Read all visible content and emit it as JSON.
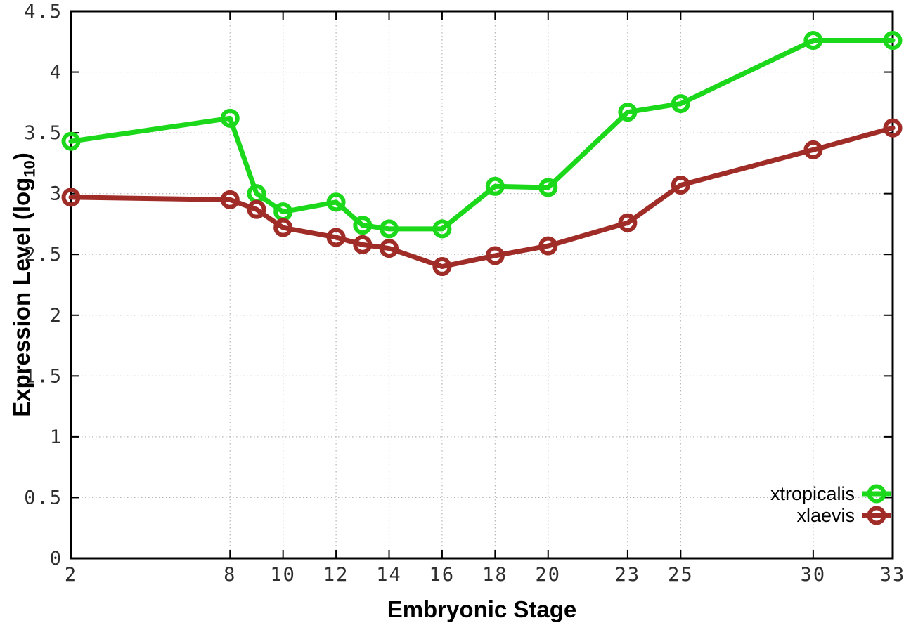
{
  "chart_data": {
    "type": "line",
    "title": "",
    "xlabel": "Embryonic Stage",
    "ylabel": "Expression Level (log10)",
    "ylabel_parts": {
      "prefix": "Expression Level (log",
      "sub": "10",
      "suffix": ")"
    },
    "x": [
      2,
      8,
      9,
      10,
      12,
      13,
      14,
      16,
      18,
      20,
      23,
      25,
      30,
      33
    ],
    "series": [
      {
        "name": "xtropicalis",
        "color": "#1bd81b",
        "values": [
          3.43,
          3.62,
          3.0,
          2.85,
          2.93,
          2.74,
          2.71,
          2.71,
          3.06,
          3.05,
          3.67,
          3.74,
          4.26,
          4.26
        ]
      },
      {
        "name": "xlaevis",
        "color": "#a02c28",
        "values": [
          2.97,
          2.95,
          2.87,
          2.72,
          2.64,
          2.58,
          2.55,
          2.4,
          2.49,
          2.57,
          2.76,
          3.07,
          3.36,
          3.54
        ]
      }
    ],
    "x_ticks": [
      2,
      8,
      10,
      12,
      14,
      16,
      18,
      20,
      23,
      25,
      30,
      33
    ],
    "x_tick_labels": [
      "2",
      "8",
      "10",
      "12",
      "14",
      "16",
      "18",
      "20",
      "23",
      "25",
      "30",
      "33"
    ],
    "y_ticks": [
      0,
      0.5,
      1,
      1.5,
      2,
      2.5,
      3,
      3.5,
      4,
      4.5
    ],
    "y_tick_labels": [
      "0",
      "0.5",
      "1",
      "1.5",
      "2",
      "2.5",
      "3",
      "3.5",
      "4",
      "4.5"
    ],
    "xlim": [
      2,
      33
    ],
    "ylim": [
      0,
      4.5
    ],
    "grid": true,
    "legend_position": "bottom-right",
    "marker": "open-circle"
  },
  "colors": {
    "background": "#ffffff",
    "axis": "#000000",
    "grid": "#b5b5b5",
    "tick_label": "#2e2e2e",
    "series_green": "#1bd81b",
    "series_red": "#a02c28"
  }
}
